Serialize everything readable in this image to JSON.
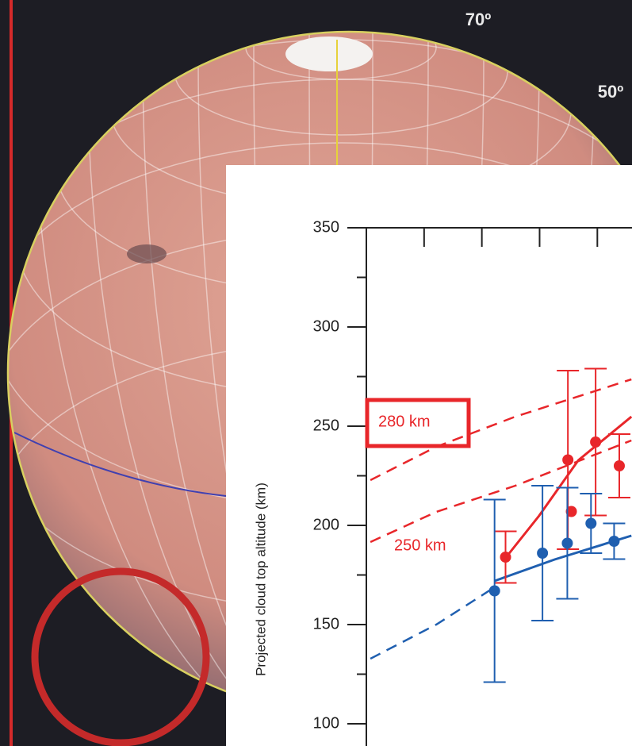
{
  "globe": {
    "labels": [
      "70º",
      "50º"
    ]
  },
  "chart_data": {
    "type": "scatter",
    "ylabel": "Projected cloud top altitude (km)",
    "annotations": [
      {
        "text": "280 km",
        "color": "#e8262a",
        "boxed": true
      },
      {
        "text": "250 km",
        "color": "#e8262a",
        "boxed": false
      }
    ],
    "xlim": [
      0,
      4.6
    ],
    "xtick_marks": [
      1,
      2,
      3,
      4
    ],
    "ylim": [
      100,
      350
    ],
    "yticks": [
      100,
      150,
      200,
      250,
      300,
      350
    ],
    "minor_yticks": [
      125,
      175,
      225,
      275,
      325
    ],
    "series": [
      {
        "color": "#e8262a",
        "x": [
          2.41,
          3.49,
          3.55,
          3.97,
          4.38
        ],
        "values": [
          184,
          233,
          207,
          242,
          230
        ],
        "errors": [
          13,
          45,
          null,
          37,
          16
        ]
      },
      {
        "color": "#1f5fb0",
        "x": [
          2.22,
          3.05,
          3.48,
          3.89,
          4.29
        ],
        "values": [
          167,
          186,
          191,
          201,
          192
        ],
        "errors": [
          46,
          34,
          28,
          15,
          9
        ]
      }
    ],
    "lines": [
      {
        "color": "#e8262a",
        "style": "dashed",
        "x": [
          0.07,
          1.21,
          2.58,
          4.59
        ],
        "values": [
          222.8,
          239.6,
          254.8,
          273.6
        ]
      },
      {
        "color": "#e8262a",
        "style": "dashed",
        "x": [
          0.07,
          1.21,
          2.58,
          4.59
        ],
        "values": [
          191.6,
          206.8,
          220,
          242.8
        ]
      },
      {
        "color": "#1f5fb0",
        "style": "dashed",
        "x": [
          0.07,
          1.21,
          2.22
        ],
        "values": [
          132.8,
          150,
          168.8
        ]
      },
      {
        "color": "#1f5fb0",
        "style": "solid",
        "x": [
          2.22,
          3.26,
          4.59
        ],
        "values": [
          172,
          182.8,
          194.8
        ]
      },
      {
        "color": "#e8262a",
        "style": "solid",
        "x": [
          2.41,
          2.99,
          3.67,
          4.59
        ],
        "values": [
          183.6,
          204.8,
          232.8,
          254.8
        ]
      }
    ]
  }
}
